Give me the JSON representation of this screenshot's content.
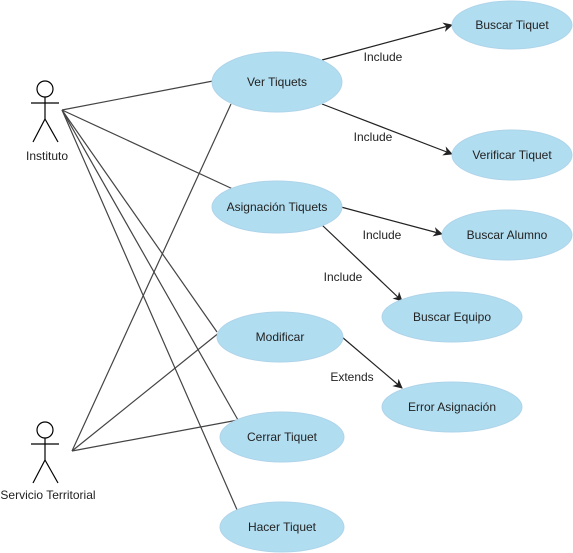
{
  "colors": {
    "usecase_fill": "#b1ddf0",
    "usecase_stroke": "#aed4ea",
    "line": "#444444",
    "text": "#222222"
  },
  "actors": {
    "instituto": "Instituto",
    "servicio": "Servicio Territorial"
  },
  "usecases": {
    "ver_tiquets": "Ver Tiquets",
    "asignacion_tiquets": "Asignación Tiquets",
    "modificar": "Modificar",
    "cerrar_tiquet": "Cerrar Tiquet",
    "hacer_tiquet": "Hacer Tiquet",
    "buscar_tiquet": "Buscar Tiquet",
    "verificar_tiquet": "Verificar Tiquet",
    "buscar_alumno": "Buscar Alumno",
    "buscar_equipo": "Buscar Equipo",
    "error_asignacion": "Error Asignación"
  },
  "relations": {
    "include_1": "Include",
    "include_2": "Include",
    "include_3": "Include",
    "include_4": "Include",
    "extends_1": "Extends"
  }
}
